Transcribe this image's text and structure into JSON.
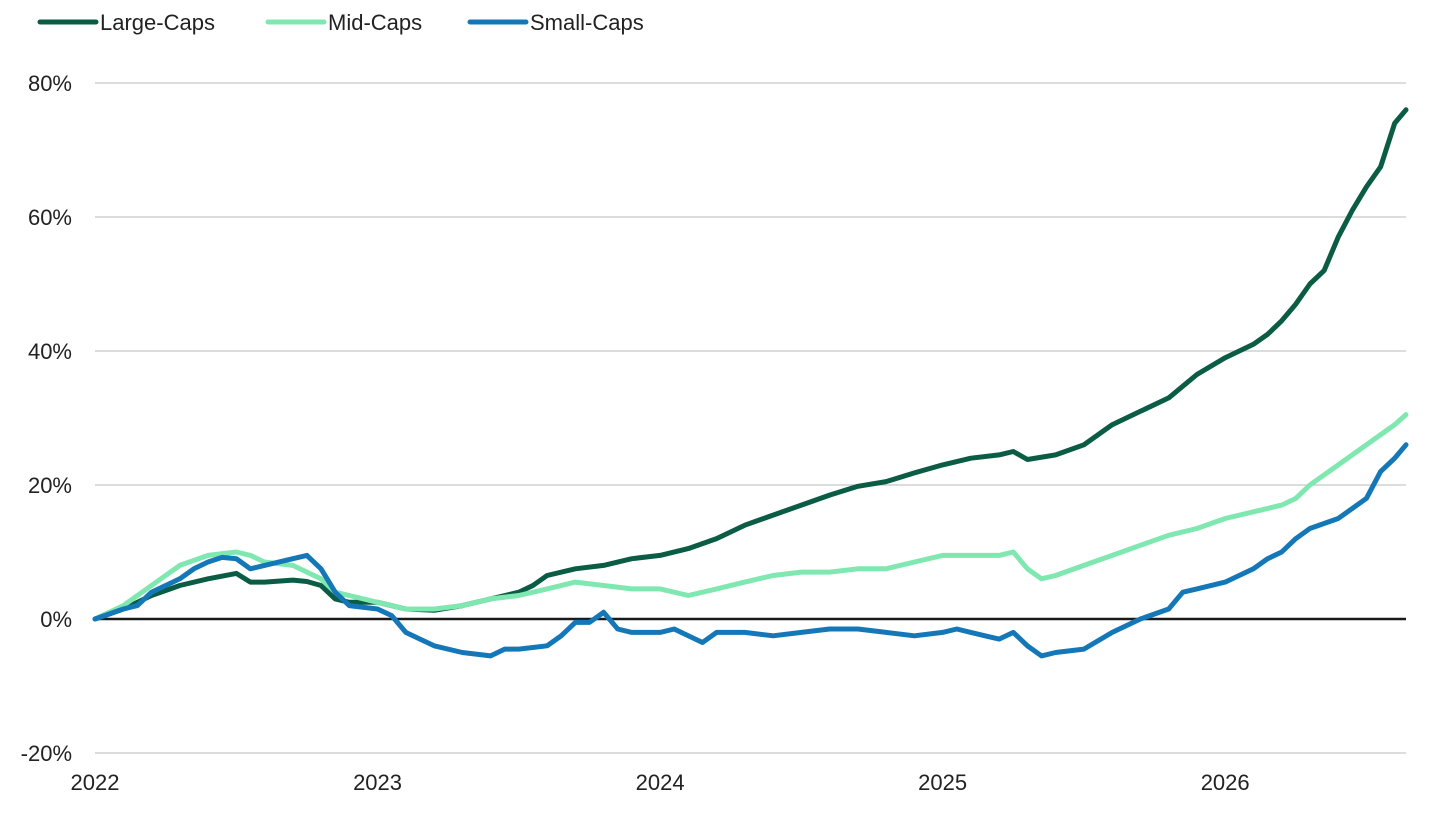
{
  "chart_data": {
    "type": "line",
    "title": "",
    "xlabel": "",
    "ylabel": "",
    "x_ticks": [
      "2022",
      "2023",
      "2024",
      "2025",
      "2026"
    ],
    "y_ticks": [
      "80%",
      "60%",
      "40%",
      "20%",
      "0%",
      "-20%"
    ],
    "ylim": [
      -20,
      80
    ],
    "xlim": [
      2022.0,
      2026.64
    ],
    "legend_position": "top-left",
    "grid": "horizontal",
    "series": [
      {
        "name": "Large-Caps",
        "color": "#0b5c45",
        "points": [
          [
            2022.0,
            0
          ],
          [
            2022.1,
            1.5
          ],
          [
            2022.2,
            3.5
          ],
          [
            2022.3,
            5
          ],
          [
            2022.4,
            6
          ],
          [
            2022.5,
            6.8
          ],
          [
            2022.55,
            5.5
          ],
          [
            2022.6,
            5.5
          ],
          [
            2022.7,
            5.8
          ],
          [
            2022.75,
            5.6
          ],
          [
            2022.8,
            5
          ],
          [
            2022.85,
            3
          ],
          [
            2022.9,
            2.5
          ],
          [
            2023.0,
            2.5
          ],
          [
            2023.1,
            1.5
          ],
          [
            2023.2,
            1.3
          ],
          [
            2023.3,
            2
          ],
          [
            2023.4,
            3
          ],
          [
            2023.5,
            4
          ],
          [
            2023.55,
            5
          ],
          [
            2023.6,
            6.5
          ],
          [
            2023.7,
            7.5
          ],
          [
            2023.8,
            8
          ],
          [
            2023.9,
            9
          ],
          [
            2024.0,
            9.5
          ],
          [
            2024.1,
            10.5
          ],
          [
            2024.2,
            12
          ],
          [
            2024.3,
            14
          ],
          [
            2024.4,
            15.5
          ],
          [
            2024.5,
            17
          ],
          [
            2024.6,
            18.5
          ],
          [
            2024.7,
            19.8
          ],
          [
            2024.8,
            20.5
          ],
          [
            2024.9,
            21.8
          ],
          [
            2025.0,
            23
          ],
          [
            2025.1,
            24
          ],
          [
            2025.2,
            24.5
          ],
          [
            2025.25,
            25
          ],
          [
            2025.3,
            23.8
          ],
          [
            2025.4,
            24.5
          ],
          [
            2025.5,
            26
          ],
          [
            2025.6,
            29
          ],
          [
            2025.7,
            31
          ],
          [
            2025.8,
            33
          ],
          [
            2025.9,
            36.5
          ],
          [
            2026.0,
            39
          ],
          [
            2026.1,
            41
          ],
          [
            2026.15,
            42.5
          ],
          [
            2026.2,
            44.5
          ],
          [
            2026.25,
            47
          ],
          [
            2026.3,
            50
          ],
          [
            2026.35,
            52
          ],
          [
            2026.4,
            57
          ],
          [
            2026.45,
            61
          ],
          [
            2026.5,
            64.5
          ],
          [
            2026.55,
            67.5
          ],
          [
            2026.6,
            74
          ],
          [
            2026.64,
            76
          ]
        ]
      },
      {
        "name": "Mid-Caps",
        "color": "#7fe8b0",
        "points": [
          [
            2022.0,
            0
          ],
          [
            2022.1,
            2
          ],
          [
            2022.2,
            5
          ],
          [
            2022.3,
            8
          ],
          [
            2022.4,
            9.5
          ],
          [
            2022.5,
            10
          ],
          [
            2022.55,
            9.5
          ],
          [
            2022.6,
            8.5
          ],
          [
            2022.7,
            8
          ],
          [
            2022.75,
            7
          ],
          [
            2022.8,
            6
          ],
          [
            2022.85,
            4
          ],
          [
            2022.9,
            3.5
          ],
          [
            2023.0,
            2.5
          ],
          [
            2023.1,
            1.5
          ],
          [
            2023.2,
            1.5
          ],
          [
            2023.3,
            2
          ],
          [
            2023.4,
            3
          ],
          [
            2023.5,
            3.5
          ],
          [
            2023.6,
            4.5
          ],
          [
            2023.7,
            5.5
          ],
          [
            2023.8,
            5
          ],
          [
            2023.9,
            4.5
          ],
          [
            2024.0,
            4.5
          ],
          [
            2024.1,
            3.5
          ],
          [
            2024.2,
            4.5
          ],
          [
            2024.3,
            5.5
          ],
          [
            2024.4,
            6.5
          ],
          [
            2024.5,
            7
          ],
          [
            2024.6,
            7
          ],
          [
            2024.7,
            7.5
          ],
          [
            2024.8,
            7.5
          ],
          [
            2024.9,
            8.5
          ],
          [
            2025.0,
            9.5
          ],
          [
            2025.1,
            9.5
          ],
          [
            2025.2,
            9.5
          ],
          [
            2025.25,
            10
          ],
          [
            2025.3,
            7.5
          ],
          [
            2025.35,
            6
          ],
          [
            2025.4,
            6.5
          ],
          [
            2025.5,
            8
          ],
          [
            2025.6,
            9.5
          ],
          [
            2025.7,
            11
          ],
          [
            2025.8,
            12.5
          ],
          [
            2025.9,
            13.5
          ],
          [
            2026.0,
            15
          ],
          [
            2026.1,
            16
          ],
          [
            2026.2,
            17
          ],
          [
            2026.25,
            18
          ],
          [
            2026.3,
            20
          ],
          [
            2026.4,
            23
          ],
          [
            2026.5,
            26
          ],
          [
            2026.6,
            29
          ],
          [
            2026.64,
            30.5
          ]
        ]
      },
      {
        "name": "Small-Caps",
        "color": "#1478b8",
        "points": [
          [
            2022.0,
            0
          ],
          [
            2022.1,
            1.5
          ],
          [
            2022.15,
            2
          ],
          [
            2022.2,
            4
          ],
          [
            2022.3,
            6
          ],
          [
            2022.35,
            7.5
          ],
          [
            2022.4,
            8.5
          ],
          [
            2022.45,
            9.2
          ],
          [
            2022.5,
            9
          ],
          [
            2022.55,
            7.5
          ],
          [
            2022.6,
            8
          ],
          [
            2022.7,
            9
          ],
          [
            2022.75,
            9.5
          ],
          [
            2022.8,
            7.5
          ],
          [
            2022.85,
            4
          ],
          [
            2022.9,
            2
          ],
          [
            2023.0,
            1.5
          ],
          [
            2023.05,
            0.5
          ],
          [
            2023.1,
            -2
          ],
          [
            2023.2,
            -4
          ],
          [
            2023.3,
            -5
          ],
          [
            2023.4,
            -5.5
          ],
          [
            2023.45,
            -4.5
          ],
          [
            2023.5,
            -4.5
          ],
          [
            2023.6,
            -4
          ],
          [
            2023.65,
            -2.5
          ],
          [
            2023.7,
            -0.5
          ],
          [
            2023.75,
            -0.5
          ],
          [
            2023.8,
            1
          ],
          [
            2023.85,
            -1.5
          ],
          [
            2023.9,
            -2
          ],
          [
            2024.0,
            -2
          ],
          [
            2024.05,
            -1.5
          ],
          [
            2024.1,
            -2.5
          ],
          [
            2024.15,
            -3.5
          ],
          [
            2024.2,
            -2
          ],
          [
            2024.3,
            -2
          ],
          [
            2024.4,
            -2.5
          ],
          [
            2024.5,
            -2
          ],
          [
            2024.6,
            -1.5
          ],
          [
            2024.7,
            -1.5
          ],
          [
            2024.8,
            -2
          ],
          [
            2024.9,
            -2.5
          ],
          [
            2025.0,
            -2
          ],
          [
            2025.05,
            -1.5
          ],
          [
            2025.1,
            -2
          ],
          [
            2025.15,
            -2.5
          ],
          [
            2025.2,
            -3
          ],
          [
            2025.25,
            -2
          ],
          [
            2025.3,
            -4
          ],
          [
            2025.35,
            -5.5
          ],
          [
            2025.4,
            -5
          ],
          [
            2025.5,
            -4.5
          ],
          [
            2025.6,
            -2
          ],
          [
            2025.7,
            0
          ],
          [
            2025.8,
            1.5
          ],
          [
            2025.85,
            4
          ],
          [
            2025.9,
            4.5
          ],
          [
            2026.0,
            5.5
          ],
          [
            2026.1,
            7.5
          ],
          [
            2026.15,
            9
          ],
          [
            2026.2,
            10
          ],
          [
            2026.25,
            12
          ],
          [
            2026.3,
            13.5
          ],
          [
            2026.4,
            15
          ],
          [
            2026.5,
            18
          ],
          [
            2026.55,
            22
          ],
          [
            2026.6,
            24
          ],
          [
            2026.64,
            26
          ]
        ]
      }
    ]
  }
}
